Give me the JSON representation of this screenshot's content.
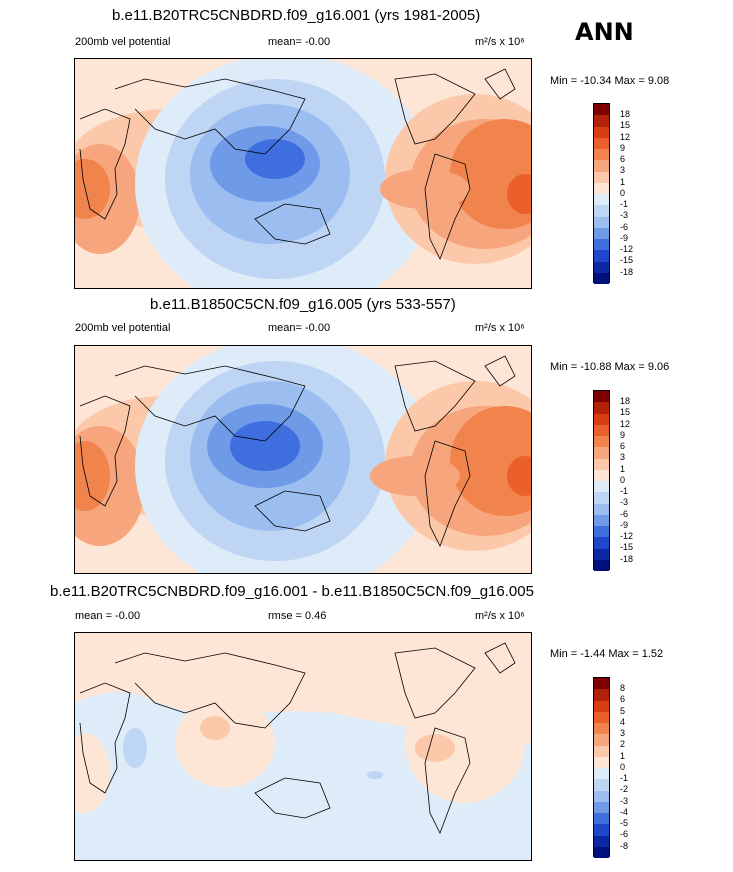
{
  "season": "ANN",
  "panels": [
    {
      "title": "b.e11.B20TRC5CNBDRD.f09_g16.001 (yrs 1981-2005)",
      "left_label": "200mb vel potential",
      "mean_label": "mean=  -0.00",
      "rmse_label": "",
      "units": "m²/s x 10⁶",
      "minmax": "Min = -10.34 Max =   9.08",
      "colorbar_levels": [
        "18",
        "15",
        "12",
        "9",
        "6",
        "3",
        "1",
        "0",
        "-1",
        "-3",
        "-6",
        "-9",
        "-12",
        "-15",
        "-18"
      ]
    },
    {
      "title": "b.e11.B1850C5CN.f09_g16.005 (yrs 533-557)",
      "left_label": "200mb vel potential",
      "mean_label": "mean=  -0.00",
      "rmse_label": "",
      "units": "m²/s x 10⁶",
      "minmax": "Min = -10.88 Max =   9.06",
      "colorbar_levels": [
        "18",
        "15",
        "12",
        "9",
        "6",
        "3",
        "1",
        "0",
        "-1",
        "-3",
        "-6",
        "-9",
        "-12",
        "-15",
        "-18"
      ]
    },
    {
      "title": "b.e11.B20TRC5CNBDRD.f09_g16.001 - b.e11.B1850C5CN.f09_g16.005",
      "left_label": "mean =  -0.00",
      "mean_label": "",
      "rmse_label": "rmse =   0.46",
      "units": "m²/s x 10⁶",
      "minmax": "Min =  -1.44 Max =   1.52",
      "colorbar_levels": [
        "8",
        "6",
        "5",
        "4",
        "3",
        "2",
        "1",
        "0",
        "-1",
        "-2",
        "-3",
        "-4",
        "-5",
        "-6",
        "-8"
      ]
    }
  ],
  "colors": {
    "colorbar": [
      "#7f0000",
      "#b22208",
      "#d93d12",
      "#ea5f2a",
      "#f1834d",
      "#f6a57c",
      "#fbc9aa",
      "#fde6d6",
      "#deebf9",
      "#bfd5f4",
      "#9bbdf0",
      "#6f9ae8",
      "#3f6fdf",
      "#1f47c9",
      "#0b27a3",
      "#00107a"
    ],
    "ocean": "#deebf9"
  }
}
